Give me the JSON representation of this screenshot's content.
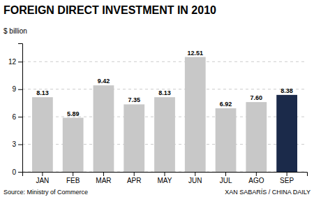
{
  "chart_data": {
    "type": "bar",
    "title": "FOREIGN DIRECT INVESTMENT IN 2010",
    "ylabel": "$ billion",
    "categories": [
      "JAN",
      "FEB",
      "MAR",
      "APR",
      "MAY",
      "JUN",
      "JUL",
      "AGO",
      "SEP"
    ],
    "values": [
      8.13,
      5.89,
      9.42,
      7.35,
      8.13,
      12.51,
      6.92,
      7.6,
      8.38
    ],
    "value_labels": [
      "8.13",
      "5.89",
      "9.42",
      "7.35",
      "8.13",
      "12.51",
      "6.92",
      "7.60",
      "8.38"
    ],
    "colors": [
      "#c8c8c8",
      "#c8c8c8",
      "#c8c8c8",
      "#c8c8c8",
      "#c8c8c8",
      "#c8c8c8",
      "#c8c8c8",
      "#c8c8c8",
      "#1b2a4a"
    ],
    "ylim": [
      0,
      14.0
    ],
    "yticks": [
      0,
      3,
      6,
      9,
      12
    ],
    "grid": true,
    "data_labels": true,
    "annotations": [
      "Source: Ministry of Commerce",
      "XAN SABARÍS / CHINA DAILY"
    ]
  }
}
